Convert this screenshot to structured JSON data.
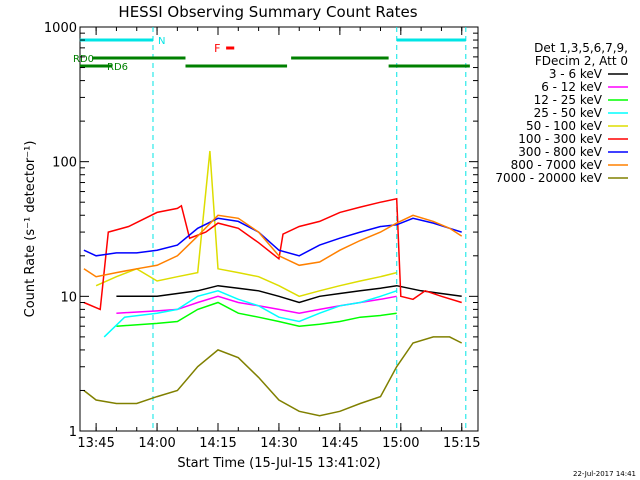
{
  "chart_data": {
    "type": "line",
    "title": "HESSI Observing Summary Count Rates",
    "xlabel": "Start Time (15-Jul-15 13:41:02)",
    "ylabel": "Count Rate (s⁻¹ detector⁻¹)",
    "y_scale": "log",
    "ylim": [
      1,
      1000
    ],
    "xlim": [
      "13:41:02",
      "15:19:00"
    ],
    "x_ticks": [
      "13:45",
      "14:00",
      "14:15",
      "14:30",
      "14:45",
      "15:00",
      "15:15"
    ],
    "y_ticks": [
      "1",
      "10",
      "100",
      "1000"
    ],
    "legend_header": [
      "Det 1,3,5,6,7,9,",
      "FDecim 2, Att 0"
    ],
    "legend_position": "right",
    "footer_date": "22-Jul-2017 14:41",
    "annotations": {
      "night": {
        "label": "N",
        "intervals": [
          [
            "13:41",
            "13:59"
          ],
          [
            "14:59",
            "15:16"
          ]
        ],
        "color": "#00e5e5"
      },
      "flare": {
        "label": "F",
        "intervals": [
          [
            "14:17",
            "14:19"
          ]
        ],
        "color": "#ff0000"
      },
      "rd0": {
        "label": "RD0",
        "intervals": [
          [
            "13:44",
            "14:07"
          ],
          [
            "14:33",
            "14:57"
          ]
        ],
        "color": "#008000"
      },
      "rd6": {
        "label": "RD6",
        "intervals": [
          [
            "13:41",
            "13:49"
          ],
          [
            "14:07",
            "14:32"
          ],
          [
            "14:57",
            "15:17"
          ]
        ],
        "color": "#008000"
      },
      "saa_lines": [
        "13:59",
        "14:59",
        "15:16"
      ]
    },
    "series": [
      {
        "name": "3 - 6 keV",
        "color": "#000000",
        "x": [
          "13:50",
          "14:00",
          "14:05",
          "14:10",
          "14:15",
          "14:20",
          "14:25",
          "14:30",
          "14:35",
          "14:40",
          "14:45",
          "14:50",
          "14:55",
          "14:59",
          "15:05",
          "15:10",
          "15:15"
        ],
        "y": [
          10,
          10,
          10.5,
          11,
          12,
          11.5,
          11,
          10,
          9,
          10,
          10.5,
          11,
          11.5,
          12,
          11,
          10.5,
          10
        ]
      },
      {
        "name": "6 - 12 keV",
        "color": "#ff00ff",
        "x": [
          "13:50",
          "14:00",
          "14:05",
          "14:10",
          "14:15",
          "14:20",
          "14:25",
          "14:30",
          "14:35",
          "14:40",
          "14:45",
          "14:50",
          "14:55",
          "14:59"
        ],
        "y": [
          7.5,
          7.8,
          8,
          9,
          10,
          9,
          8.5,
          8,
          7.5,
          8,
          8.5,
          9,
          9.5,
          10
        ]
      },
      {
        "name": "12 - 25 keV",
        "color": "#00ff00",
        "x": [
          "13:50",
          "14:00",
          "14:05",
          "14:10",
          "14:15",
          "14:20",
          "14:25",
          "14:30",
          "14:35",
          "14:40",
          "14:45",
          "14:50",
          "14:55",
          "14:59"
        ],
        "y": [
          6,
          6.3,
          6.5,
          8,
          9,
          7.5,
          7,
          6.5,
          6,
          6.2,
          6.5,
          7,
          7.2,
          7.5
        ]
      },
      {
        "name": "25 - 50 keV",
        "color": "#00ffff",
        "x": [
          "13:47",
          "13:52",
          "14:00",
          "14:05",
          "14:10",
          "14:15",
          "14:20",
          "14:25",
          "14:30",
          "14:35",
          "14:40",
          "14:45",
          "14:50",
          "14:55",
          "14:59"
        ],
        "y": [
          5,
          7,
          7.5,
          8,
          10,
          11,
          9.5,
          8.5,
          7,
          6.5,
          7.5,
          8.5,
          9,
          10,
          11
        ]
      },
      {
        "name": "50 - 100 keV",
        "color": "#dddd00",
        "x": [
          "13:45",
          "13:50",
          "13:55",
          "14:00",
          "14:05",
          "14:10",
          "14:13",
          "14:15",
          "14:20",
          "14:25",
          "14:30",
          "14:35",
          "14:40",
          "14:45",
          "14:50",
          "14:55",
          "14:59"
        ],
        "y": [
          12,
          14,
          16,
          13,
          14,
          15,
          120,
          16,
          15,
          14,
          12,
          10,
          11,
          12,
          13,
          14,
          15
        ]
      },
      {
        "name": "100 - 300 keV",
        "color": "#ff0000",
        "x": [
          "13:42",
          "13:46",
          "13:48",
          "13:53",
          "14:00",
          "14:05",
          "14:06",
          "14:08",
          "14:12",
          "14:15",
          "14:20",
          "14:25",
          "14:30",
          "14:31",
          "14:35",
          "14:40",
          "14:45",
          "14:50",
          "14:55",
          "14:59",
          "15:00",
          "15:03",
          "15:06",
          "15:10",
          "15:15"
        ],
        "y": [
          9,
          8,
          30,
          33,
          42,
          45,
          47,
          27,
          30,
          35,
          32,
          25,
          19,
          29,
          33,
          36,
          42,
          46,
          50,
          53,
          10,
          9.5,
          11,
          10,
          9
        ]
      },
      {
        "name": "300 - 800 keV",
        "color": "#0000ff",
        "x": [
          "13:42",
          "13:45",
          "13:50",
          "13:55",
          "14:00",
          "14:05",
          "14:10",
          "14:15",
          "14:20",
          "14:25",
          "14:30",
          "14:35",
          "14:40",
          "14:45",
          "14:50",
          "14:55",
          "14:59",
          "15:03",
          "15:08",
          "15:12",
          "15:15"
        ],
        "y": [
          22,
          20,
          21,
          21,
          22,
          24,
          32,
          38,
          36,
          30,
          22,
          20,
          24,
          27,
          30,
          33,
          34,
          38,
          35,
          32,
          30
        ]
      },
      {
        "name": "800 - 7000 keV",
        "color": "#ff8000",
        "x": [
          "13:42",
          "13:45",
          "13:50",
          "13:55",
          "14:00",
          "14:05",
          "14:10",
          "14:15",
          "14:20",
          "14:25",
          "14:30",
          "14:35",
          "14:40",
          "14:45",
          "14:50",
          "14:55",
          "14:59",
          "15:03",
          "15:08",
          "15:12",
          "15:15"
        ],
        "y": [
          16,
          14,
          15,
          16,
          17,
          20,
          28,
          40,
          38,
          30,
          20,
          17,
          18,
          22,
          26,
          30,
          35,
          40,
          36,
          32,
          28
        ]
      },
      {
        "name": "7000 - 20000 keV",
        "color": "#808000",
        "x": [
          "13:42",
          "13:45",
          "13:50",
          "13:55",
          "14:00",
          "14:05",
          "14:10",
          "14:15",
          "14:20",
          "14:25",
          "14:30",
          "14:35",
          "14:40",
          "14:45",
          "14:50",
          "14:55",
          "14:59",
          "15:03",
          "15:08",
          "15:12",
          "15:15"
        ],
        "y": [
          2,
          1.7,
          1.6,
          1.6,
          1.8,
          2,
          3,
          4,
          3.5,
          2.5,
          1.7,
          1.4,
          1.3,
          1.4,
          1.6,
          1.8,
          3,
          4.5,
          5,
          5,
          4.5
        ]
      }
    ]
  }
}
